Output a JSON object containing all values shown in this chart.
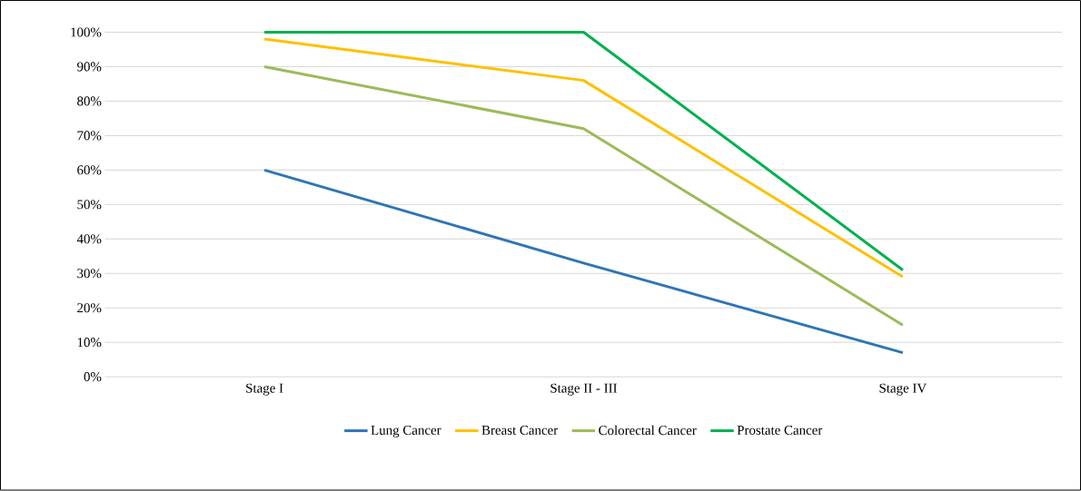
{
  "chart_data": {
    "type": "line",
    "categories": [
      "Stage I",
      "Stage II - III",
      "Stage IV"
    ],
    "series": [
      {
        "name": "Lung Cancer",
        "color": "#2e75b6",
        "values": [
          60,
          33,
          7
        ]
      },
      {
        "name": "Breast Cancer",
        "color": "#ffc000",
        "values": [
          98,
          86,
          29
        ]
      },
      {
        "name": "Colorectal Cancer",
        "color": "#9bbb59",
        "values": [
          90,
          72,
          15
        ]
      },
      {
        "name": "Prostate Cancer",
        "color": "#00b050",
        "values": [
          100,
          100,
          31
        ]
      }
    ],
    "ylim": [
      0,
      100
    ],
    "yticks": [
      {
        "value": 0,
        "label": "0%"
      },
      {
        "value": 10,
        "label": "10%"
      },
      {
        "value": 20,
        "label": "20%"
      },
      {
        "value": 30,
        "label": "30%"
      },
      {
        "value": 40,
        "label": "40%"
      },
      {
        "value": 50,
        "label": "50%"
      },
      {
        "value": 60,
        "label": "60%"
      },
      {
        "value": 70,
        "label": "70%"
      },
      {
        "value": 80,
        "label": "80%"
      },
      {
        "value": 90,
        "label": "90%"
      },
      {
        "value": 100,
        "label": "100%"
      }
    ],
    "grid": "y",
    "legend": "bottom",
    "marker": "none",
    "line_style": "solid"
  }
}
